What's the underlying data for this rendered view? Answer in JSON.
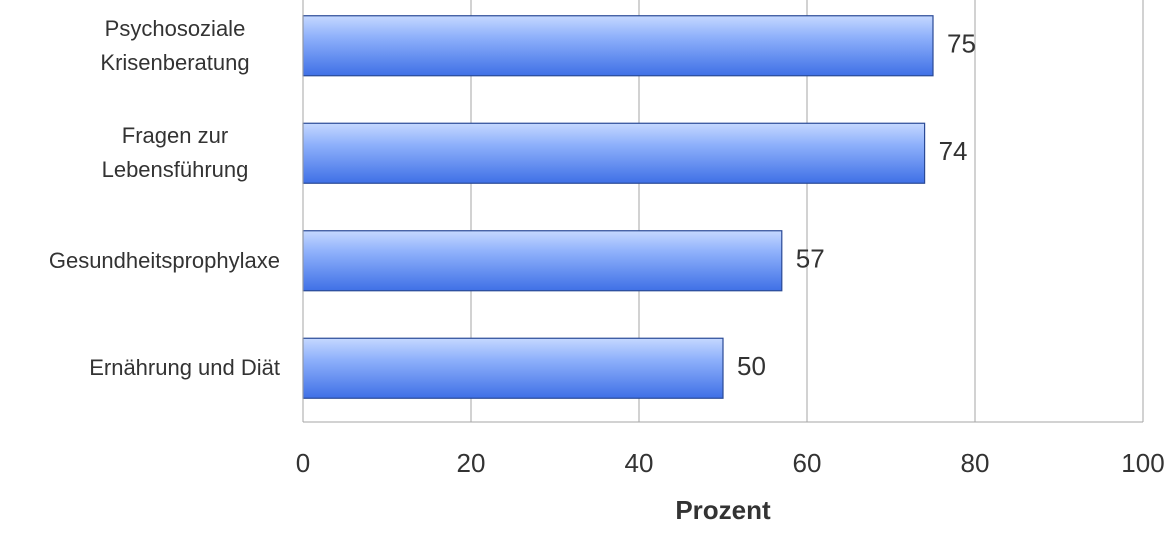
{
  "chart_data": {
    "type": "bar",
    "orientation": "horizontal",
    "x_label": "Prozent",
    "categories": [
      "Psychosoziale Krisenberatung",
      "Fragen zur Lebensführung",
      "Gesundheitsprophylaxe",
      "Ernährung und Diät"
    ],
    "values": [
      75,
      74,
      57,
      50
    ],
    "color": "#5b8cf5",
    "xlim": [
      0,
      100
    ],
    "xticks": [
      0,
      20,
      40,
      60,
      80,
      100
    ],
    "grid": true
  }
}
